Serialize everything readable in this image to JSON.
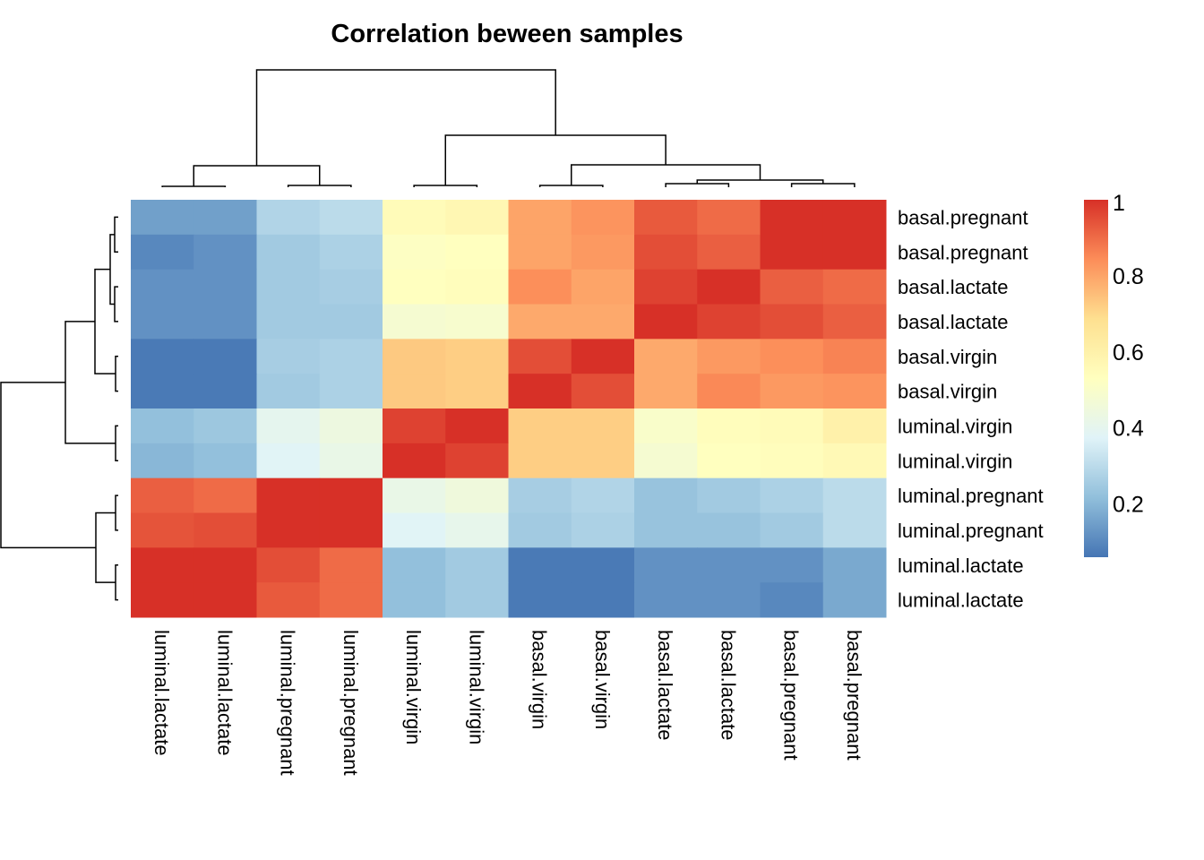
{
  "chart_data": {
    "type": "heatmap",
    "title": "Correlation beween samples",
    "row_labels": [
      "basal.pregnant",
      "basal.pregnant",
      "basal.lactate",
      "basal.lactate",
      "basal.virgin",
      "basal.virgin",
      "luminal.virgin",
      "luminal.virgin",
      "luminal.pregnant",
      "luminal.pregnant",
      "luminal.lactate",
      "luminal.lactate"
    ],
    "col_labels": [
      "luminal.lactate",
      "luminal.lactate",
      "luminal.pregnant",
      "luminal.pregnant",
      "luminal.virgin",
      "luminal.virgin",
      "basal.virgin",
      "basal.virgin",
      "basal.lactate",
      "basal.lactate",
      "basal.pregnant",
      "basal.pregnant"
    ],
    "values": [
      [
        0.15,
        0.15,
        0.28,
        0.3,
        0.55,
        0.57,
        0.8,
        0.83,
        0.93,
        0.9,
        1.0,
        1.0
      ],
      [
        0.1,
        0.12,
        0.25,
        0.27,
        0.52,
        0.53,
        0.8,
        0.82,
        0.95,
        0.92,
        1.0,
        1.0
      ],
      [
        0.12,
        0.12,
        0.25,
        0.26,
        0.53,
        0.54,
        0.84,
        0.8,
        0.97,
        1.0,
        0.92,
        0.9
      ],
      [
        0.12,
        0.12,
        0.25,
        0.25,
        0.48,
        0.49,
        0.79,
        0.79,
        1.0,
        0.97,
        0.95,
        0.92
      ],
      [
        0.07,
        0.07,
        0.26,
        0.27,
        0.73,
        0.72,
        0.95,
        1.0,
        0.79,
        0.82,
        0.84,
        0.86
      ],
      [
        0.07,
        0.07,
        0.25,
        0.27,
        0.73,
        0.72,
        1.0,
        0.95,
        0.79,
        0.85,
        0.82,
        0.83
      ],
      [
        0.22,
        0.24,
        0.4,
        0.44,
        0.97,
        1.0,
        0.72,
        0.72,
        0.5,
        0.54,
        0.55,
        0.6
      ],
      [
        0.2,
        0.22,
        0.38,
        0.42,
        1.0,
        0.97,
        0.72,
        0.72,
        0.48,
        0.53,
        0.54,
        0.56
      ],
      [
        0.92,
        0.9,
        1.0,
        1.0,
        0.42,
        0.45,
        0.26,
        0.28,
        0.23,
        0.25,
        0.27,
        0.3
      ],
      [
        0.94,
        0.95,
        1.0,
        1.0,
        0.38,
        0.41,
        0.25,
        0.27,
        0.23,
        0.23,
        0.25,
        0.3
      ],
      [
        1.0,
        1.0,
        0.95,
        0.9,
        0.22,
        0.25,
        0.07,
        0.07,
        0.12,
        0.12,
        0.12,
        0.17
      ],
      [
        1.0,
        1.0,
        0.93,
        0.9,
        0.22,
        0.25,
        0.07,
        0.07,
        0.12,
        0.12,
        0.1,
        0.17
      ]
    ],
    "color_range": [
      0.06,
      1
    ],
    "palette": [
      "#4575B4",
      "#91BFDB",
      "#E0F3F8",
      "#FFFFBF",
      "#FEE090",
      "#FC8D59",
      "#D73027"
    ],
    "legend": {
      "position": "right",
      "ticks": [
        "1",
        "0.8",
        "0.6",
        "0.4",
        "0.2"
      ],
      "tick_values": [
        1,
        0.8,
        0.6,
        0.4,
        0.2
      ]
    },
    "dendrograms": {
      "rows": true,
      "columns": true
    }
  }
}
